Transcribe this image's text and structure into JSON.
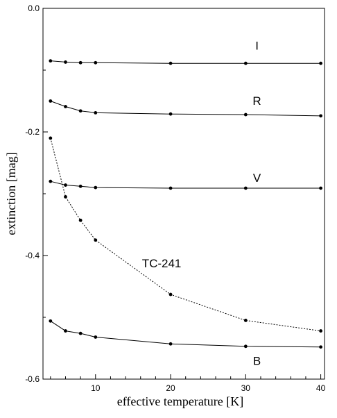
{
  "chart_data": {
    "type": "line",
    "xlabel": "effective temperature [K]",
    "ylabel": "extinction [mag]",
    "xlim": [
      3,
      40.5
    ],
    "ylim": [
      -0.6,
      0.0
    ],
    "xticks": [
      10,
      20,
      30,
      40
    ],
    "yticks": [
      0.0,
      -0.2,
      -0.4,
      -0.6
    ],
    "xtick_labels": [
      "10",
      "20",
      "30",
      "40"
    ],
    "ytick_labels": [
      "0.0",
      "-0.2",
      "-0.4",
      "-0.6"
    ],
    "grid": false,
    "legend": "none",
    "series": [
      {
        "name": "I",
        "style": "solid",
        "label_at": [
          31.5,
          -0.067
        ],
        "x": [
          4,
          6,
          8,
          10,
          20,
          30,
          40
        ],
        "y": [
          -0.085,
          -0.087,
          -0.088,
          -0.088,
          -0.089,
          -0.089,
          -0.089
        ]
      },
      {
        "name": "R",
        "style": "solid",
        "label_at": [
          31.5,
          -0.156
        ],
        "x": [
          4,
          6,
          8,
          10,
          20,
          30,
          40
        ],
        "y": [
          -0.15,
          -0.159,
          -0.166,
          -0.169,
          -0.171,
          -0.172,
          -0.174
        ]
      },
      {
        "name": "V",
        "style": "solid",
        "label_at": [
          31.5,
          -0.281
        ],
        "x": [
          4,
          6,
          8,
          10,
          20,
          30,
          40
        ],
        "y": [
          -0.28,
          -0.286,
          -0.288,
          -0.29,
          -0.291,
          -0.291,
          -0.291
        ]
      },
      {
        "name": "TC-241",
        "style": "dotted",
        "label_at": [
          18.8,
          -0.419
        ],
        "x": [
          4,
          6,
          8,
          10,
          20,
          30,
          40
        ],
        "y": [
          -0.21,
          -0.305,
          -0.343,
          -0.375,
          -0.463,
          -0.505,
          -0.522
        ]
      },
      {
        "name": "B",
        "style": "solid",
        "label_at": [
          31.5,
          -0.577
        ],
        "x": [
          4,
          6,
          8,
          10,
          20,
          30,
          40
        ],
        "y": [
          -0.506,
          -0.522,
          -0.526,
          -0.532,
          -0.543,
          -0.547,
          -0.548
        ]
      }
    ]
  }
}
